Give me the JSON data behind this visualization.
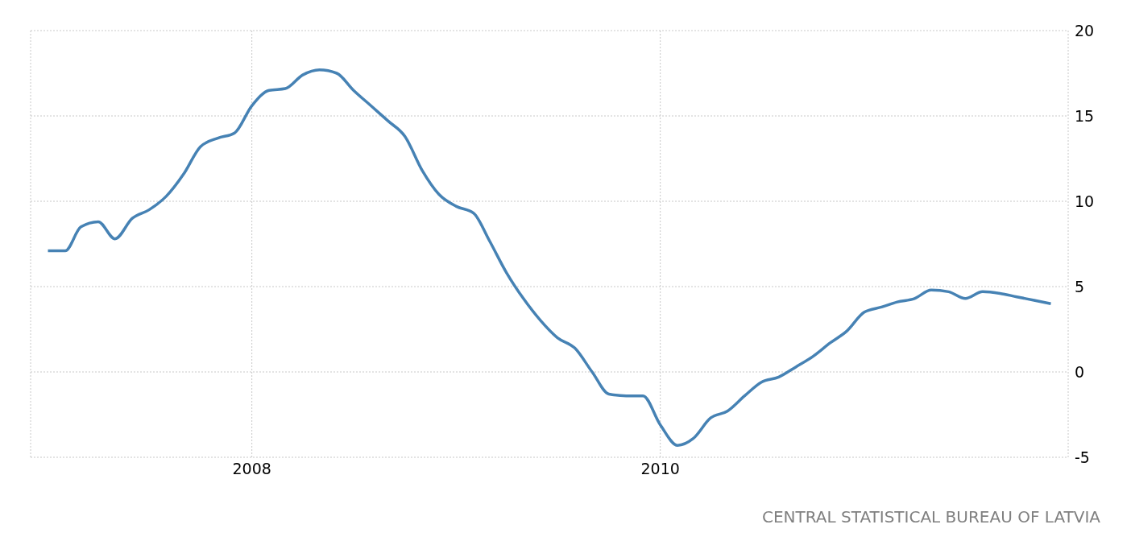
{
  "chart_data": {
    "type": "line",
    "x": [
      "2007-01",
      "2007-02",
      "2007-03",
      "2007-04",
      "2007-05",
      "2007-06",
      "2007-07",
      "2007-08",
      "2007-09",
      "2007-10",
      "2007-11",
      "2007-12",
      "2008-01",
      "2008-02",
      "2008-03",
      "2008-04",
      "2008-05",
      "2008-06",
      "2008-07",
      "2008-08",
      "2008-09",
      "2008-10",
      "2008-11",
      "2008-12",
      "2009-01",
      "2009-02",
      "2009-03",
      "2009-04",
      "2009-05",
      "2009-06",
      "2009-07",
      "2009-08",
      "2009-09",
      "2009-10",
      "2009-11",
      "2009-12",
      "2010-01",
      "2010-02",
      "2010-03",
      "2010-04",
      "2010-05",
      "2010-06",
      "2010-07",
      "2010-08",
      "2010-09",
      "2010-10",
      "2010-11",
      "2010-12",
      "2011-01",
      "2011-02",
      "2011-03",
      "2011-04",
      "2011-05",
      "2011-06",
      "2011-07",
      "2011-08",
      "2011-09",
      "2011-10",
      "2011-11",
      "2011-12"
    ],
    "series": [
      {
        "color": "#4682b4",
        "values": [
          7.1,
          7.1,
          8.5,
          8.8,
          7.8,
          9.0,
          9.5,
          10.3,
          11.6,
          13.2,
          13.7,
          14.0,
          15.6,
          16.5,
          16.6,
          17.4,
          17.7,
          17.5,
          16.5,
          15.6,
          14.7,
          13.8,
          11.8,
          10.4,
          9.7,
          9.3,
          7.7,
          5.8,
          4.3,
          3.0,
          2.0,
          1.4,
          0.0,
          -1.3,
          -1.4,
          -1.4,
          -3.1,
          -4.3,
          -3.9,
          -2.7,
          -2.3,
          -1.4,
          -0.6,
          -0.3,
          0.3,
          0.9,
          1.7,
          2.4,
          3.5,
          3.8,
          4.1,
          4.3,
          4.8,
          4.7,
          4.3,
          4.7,
          4.6,
          4.4,
          4.2,
          4.0
        ]
      }
    ],
    "xlim": [
      "2006-12",
      "2012-01"
    ],
    "xticks": [
      "2008",
      "2010"
    ],
    "ylim": [
      -5,
      20
    ],
    "yticks": [
      -5,
      0,
      5,
      10,
      15,
      20
    ],
    "grid": true,
    "marker": "none",
    "line_style": "solid",
    "annotations": [
      "CENTRAL STATISTICAL BUREAU OF LATVIA"
    ]
  }
}
